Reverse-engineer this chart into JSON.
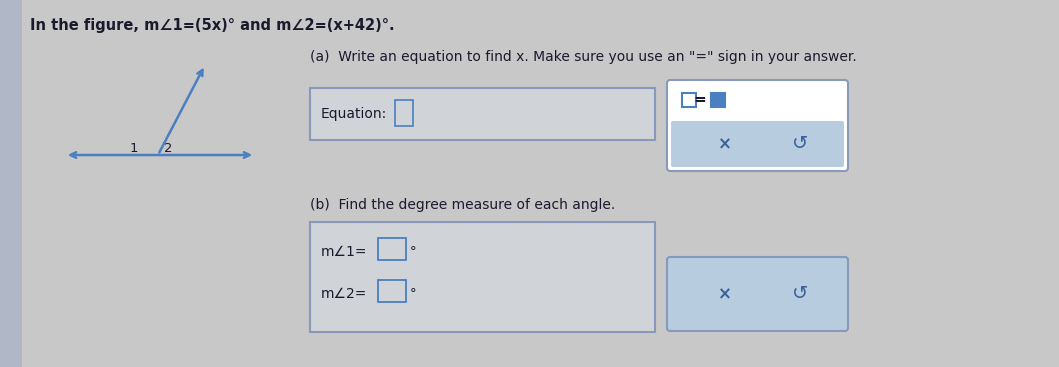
{
  "bg_color": "#c8c8c8",
  "bg_color_left": "#b0b8c8",
  "text_color": "#1a1a2e",
  "blue_color": "#4a7fc0",
  "blue_dark": "#3a5f9a",
  "title_text": "In the figure, m∠1=(5x)° and m∠2=(x+42)°.",
  "part_a_header": "(a)  Write an equation to find x. Make sure you use an \"=\" sign in your answer.",
  "equation_label": "Equation:",
  "answer_box_a_left": "□",
  "answer_box_a_eq": "=",
  "answer_box_a_right": "□",
  "x_symbol": "×",
  "undo_symbol": "↺",
  "part_b_header": "(b)  Find the degree measure of each angle.",
  "angle1_label": "m∠1=",
  "angle2_label": "m∠2=",
  "degree_symbol": "°",
  "box_outline_color": "#8899bb",
  "answer_panel_bg": "#b8cce0",
  "white": "#ffffff",
  "fig_width": 10.59,
  "fig_height": 3.67,
  "dpi": 100
}
